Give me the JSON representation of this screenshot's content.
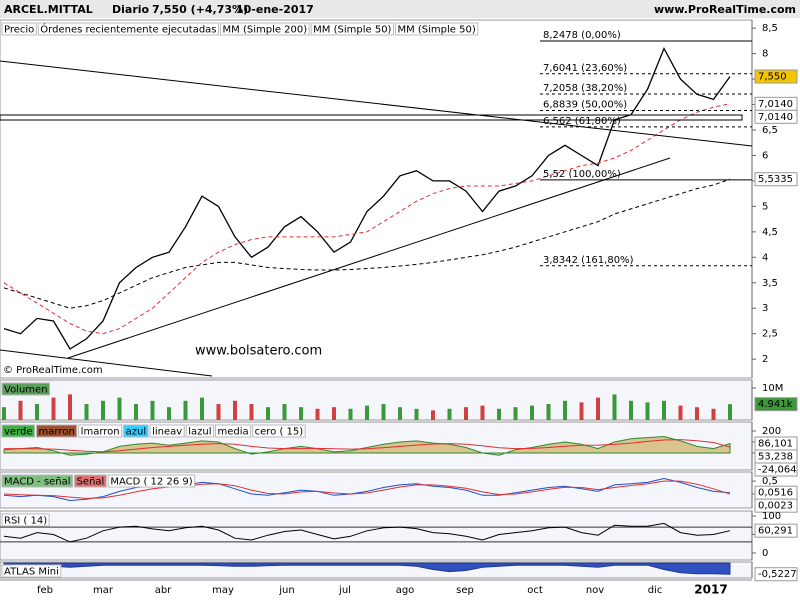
{
  "header": {
    "symbol": "ARCEL.MITTAL",
    "period": "Diario",
    "quote": "7,550 (+4,73%)",
    "date": "10-ene-2017",
    "site": "www.ProRealTime.com"
  },
  "watermark": "www.bolsatero.com",
  "copyright": "© ProRealTime.com",
  "x_axis_labels": [
    "feb",
    "mar",
    "abr",
    "may",
    "jun",
    "jul",
    "ago",
    "sep",
    "oct",
    "nov",
    "dic",
    "2017"
  ],
  "chart_data": [
    {
      "type": "line",
      "legend": [
        {
          "label": "Precio",
          "color": "#000000",
          "bg": "#ffffff"
        },
        {
          "label": "Órdenes recientemente ejecutadas",
          "color": "#e05050",
          "bg": "#ffffff"
        },
        {
          "label": "MM (Simple 200)",
          "color": "#000000",
          "bg": "#ffffff"
        },
        {
          "label": "MM (Simple 50)",
          "color": "#e07070",
          "bg": "#ffffff"
        },
        {
          "label": "MM (Simple 50)",
          "color": "#e07070",
          "bg": "#ffffff"
        }
      ],
      "ylim": [
        1.63,
        8.66
      ],
      "yticks": [
        2,
        {
          "value": 2.5,
          "label": "2,5"
        },
        3,
        {
          "value": 3.5,
          "label": "3,5"
        },
        4,
        {
          "value": 4.5,
          "label": "4,5"
        },
        5,
        {
          "value": 5.5,
          "label": "5,5"
        },
        6,
        {
          "value": 6.5,
          "label": "6,5"
        },
        7,
        {
          "value": 7.5,
          "label": "7,5"
        },
        8,
        {
          "value": 8.5,
          "label": "8,5"
        }
      ],
      "series": [
        {
          "color": "#000000",
          "dash": false,
          "values": [
            2.6,
            2.5,
            2.8,
            2.75,
            2.2,
            2.4,
            2.75,
            3.5,
            3.8,
            4.0,
            4.1,
            4.6,
            5.2,
            5.0,
            4.4,
            4.0,
            4.2,
            4.6,
            4.8,
            4.5,
            4.1,
            4.3,
            4.9,
            5.2,
            5.6,
            5.7,
            5.5,
            5.5,
            5.3,
            4.9,
            5.3,
            5.4,
            5.6,
            6.0,
            6.2,
            6.0,
            5.8,
            6.7,
            6.8,
            7.3,
            8.1,
            7.5,
            7.2,
            7.1,
            7.55
          ]
        },
        {
          "color": "#000000",
          "dash": true,
          "values": [
            3.4,
            3.3,
            3.2,
            3.1,
            3.0,
            3.05,
            3.15,
            3.3,
            3.45,
            3.6,
            3.7,
            3.8,
            3.85,
            3.9,
            3.9,
            3.85,
            3.8,
            3.78,
            3.76,
            3.75,
            3.75,
            3.76,
            3.78,
            3.8,
            3.83,
            3.86,
            3.9,
            3.95,
            4.0,
            4.05,
            4.12,
            4.2,
            4.3,
            4.4,
            4.5,
            4.6,
            4.7,
            4.85,
            4.95,
            5.05,
            5.15,
            5.25,
            5.35,
            5.42,
            5.5335
          ]
        },
        {
          "color": "#e03030",
          "dash": true,
          "values": [
            3.5,
            3.3,
            3.1,
            2.9,
            2.7,
            2.55,
            2.5,
            2.6,
            2.8,
            3.0,
            3.3,
            3.6,
            3.9,
            4.1,
            4.25,
            4.35,
            4.4,
            4.4,
            4.4,
            4.4,
            4.4,
            4.45,
            4.5,
            4.7,
            4.9,
            5.1,
            5.25,
            5.35,
            5.4,
            5.4,
            5.4,
            5.45,
            5.5,
            5.6,
            5.7,
            5.8,
            5.85,
            5.95,
            6.1,
            6.3,
            6.5,
            6.7,
            6.85,
            6.95,
            7.014
          ]
        }
      ],
      "annotations": [
        {
          "value": 8.2478,
          "label": "8,2478 (0,00%)",
          "dash": false
        },
        {
          "value": 7.6041,
          "label": "7,6041 (23,60%)",
          "dash": true
        },
        {
          "value": 7.2058,
          "label": "7,2058 (38,20%)",
          "dash": true
        },
        {
          "value": 6.8839,
          "label": "6,8839 (50,00%)",
          "dash": true
        },
        {
          "value": 6.562,
          "label": "6,562 (61,80%)",
          "dash": true
        },
        {
          "value": 5.52,
          "label": "5,52 (100,00%)",
          "dash": false
        },
        {
          "value": 3.8342,
          "label": "3,8342 (161,80%)",
          "dash": true
        }
      ],
      "last_labels": [
        {
          "value": 7.55,
          "label": "7,550",
          "color": "#000000",
          "bg": "#f5c400"
        },
        {
          "value": 7.014,
          "label": "7,0140",
          "color": "#e03030",
          "bg": "#ffffff"
        },
        {
          "value": 7.014,
          "label": "7,0140",
          "color": "#e03030",
          "bg": "#ffffff"
        },
        {
          "value": 5.5335,
          "label": "5,5335",
          "color": "#000000",
          "bg": "#ffffff"
        }
      ]
    },
    {
      "type": "bar",
      "legend": [
        {
          "label": "Volumen",
          "color": "#ffffff",
          "bg": "#5aa05a"
        }
      ],
      "up_color": "#3a9a3a",
      "down_color": "#d04040",
      "ylim": [
        0,
        12500
      ],
      "yticks": [
        {
          "value": 10000,
          "label": "10M"
        }
      ],
      "values": [
        4000,
        6000,
        5000,
        7000,
        8000,
        5000,
        6000,
        7000,
        5000,
        6000,
        4000,
        6000,
        7000,
        5000,
        6000,
        5000,
        4000,
        5000,
        4000,
        3500,
        4000,
        3500,
        4500,
        5000,
        4000,
        3500,
        3000,
        3500,
        4000,
        4500,
        3500,
        4000,
        4500,
        5000,
        6000,
        5500,
        7000,
        8000,
        6000,
        5500,
        6000,
        4500,
        4000,
        3500,
        4941
      ],
      "last_labels": [
        {
          "value": 4941,
          "label": "4.941k",
          "color": "#ffffff",
          "bg": "#3a9a3a"
        }
      ]
    },
    {
      "type": "area",
      "legend": [
        {
          "label": "verde",
          "color": "#ffffff",
          "bg": "#3cb043"
        },
        {
          "label": "marron",
          "color": "#ffffff",
          "bg": "#a0522d"
        },
        {
          "label": "lmarron",
          "color": "#000000",
          "bg": "#ffffff"
        },
        {
          "label": "azul",
          "color": "#000000",
          "bg": "#33ccff"
        },
        {
          "label": "lineav",
          "color": "#000000",
          "bg": "#ffffff"
        },
        {
          "label": "lazul",
          "color": "#000000",
          "bg": "#ffffff"
        },
        {
          "label": "media",
          "color": "#e03030",
          "bg": "#ffffff"
        },
        {
          "label": "cero ( 15)",
          "color": "#000000",
          "bg": "#ffffff"
        }
      ],
      "ylim": [
        -155,
        282
      ],
      "yticks": [
        200,
        100,
        0
      ],
      "series": [
        {
          "color": "#d9c48e",
          "line": "#2e8b2e",
          "values": [
            30,
            40,
            50,
            20,
            -20,
            -10,
            10,
            60,
            80,
            90,
            70,
            90,
            110,
            100,
            40,
            -10,
            10,
            40,
            60,
            40,
            10,
            20,
            50,
            80,
            100,
            110,
            90,
            80,
            50,
            0,
            -20,
            30,
            50,
            80,
            100,
            80,
            40,
            100,
            130,
            140,
            150,
            110,
            60,
            40,
            86.101
          ]
        },
        {
          "color": "#e03030",
          "values": [
            40,
            40,
            38,
            35,
            25,
            15,
            10,
            20,
            35,
            50,
            60,
            70,
            80,
            85,
            80,
            60,
            45,
            40,
            40,
            42,
            38,
            35,
            38,
            48,
            60,
            72,
            82,
            85,
            80,
            65,
            48,
            40,
            42,
            50,
            62,
            70,
            72,
            78,
            90,
            105,
            118,
            122,
            112,
            95,
            53.238
          ]
        }
      ],
      "last_labels": [
        {
          "value": 86.101,
          "label": "86,101",
          "color": "#000000",
          "bg": "#ffffff"
        },
        {
          "value": 53.238,
          "label": "53,238",
          "color": "#e03030",
          "bg": "#ffffff"
        },
        {
          "value": -24.064,
          "label": "-24,064",
          "color": "#1e50c8",
          "bg": "#ffffff"
        }
      ]
    },
    {
      "type": "line",
      "legend": [
        {
          "label": "MACD - señal",
          "color": "#ffffff",
          "bg": "#7fbf7f"
        },
        {
          "label": "Señal",
          "color": "#ffffff",
          "bg": "#e07070"
        },
        {
          "label": "MACD ( 12 26 9)",
          "color": "#1e50c8",
          "bg": "#ffffff"
        }
      ],
      "ylim": [
        -0.54,
        0.85
      ],
      "yticks": [
        {
          "value": 0.5,
          "label": "0,5"
        },
        0
      ],
      "series": [
        {
          "color": "#1e50c8",
          "dash": false,
          "values": [
            -0.05,
            -0.1,
            -0.05,
            -0.1,
            -0.25,
            -0.2,
            -0.1,
            0.1,
            0.25,
            0.3,
            0.3,
            0.35,
            0.45,
            0.4,
            0.2,
            0.0,
            -0.05,
            0.05,
            0.15,
            0.1,
            -0.05,
            0.0,
            0.1,
            0.25,
            0.35,
            0.4,
            0.3,
            0.25,
            0.15,
            -0.05,
            -0.05,
            0.05,
            0.15,
            0.25,
            0.3,
            0.2,
            0.1,
            0.35,
            0.4,
            0.45,
            0.6,
            0.45,
            0.25,
            0.1,
            0.0516
          ]
        },
        {
          "color": "#e03030",
          "dash": false,
          "values": [
            0,
            -0.03,
            -0.05,
            -0.06,
            -0.12,
            -0.17,
            -0.15,
            -0.05,
            0.08,
            0.2,
            0.27,
            0.3,
            0.38,
            0.4,
            0.32,
            0.15,
            0.02,
            0.0,
            0.08,
            0.1,
            0.04,
            0.0,
            0.04,
            0.15,
            0.27,
            0.35,
            0.35,
            0.3,
            0.22,
            0.08,
            -0.02,
            0.0,
            0.08,
            0.18,
            0.26,
            0.25,
            0.17,
            0.25,
            0.33,
            0.4,
            0.5,
            0.5,
            0.38,
            0.2,
            0.0023
          ]
        }
      ],
      "last_labels": [
        {
          "value": 0.0516,
          "label": "0,0516",
          "color": "#1e50c8",
          "bg": "#ffffff"
        },
        {
          "value": 0.0023,
          "label": "0,0023",
          "color": "#3a9a3a",
          "bg": "#ffffff"
        }
      ]
    },
    {
      "type": "line",
      "legend": [
        {
          "label": "RSI ( 14)",
          "color": "#000000",
          "bg": "#ffffff"
        }
      ],
      "ylim": [
        -19,
        113.5
      ],
      "yticks": [
        100,
        50,
        0
      ],
      "levels": [
        70,
        30
      ],
      "series": [
        {
          "color": "#000000",
          "dash": false,
          "values": [
            45,
            40,
            55,
            50,
            30,
            40,
            60,
            70,
            72,
            65,
            60,
            68,
            72,
            62,
            40,
            35,
            48,
            58,
            62,
            50,
            38,
            45,
            60,
            68,
            70,
            66,
            55,
            52,
            45,
            35,
            50,
            55,
            60,
            68,
            70,
            55,
            48,
            75,
            72,
            72,
            80,
            55,
            48,
            50,
            60.291
          ]
        }
      ],
      "last_labels": [
        {
          "value": 60.291,
          "label": "60,291",
          "color": "#000000",
          "bg": "#ffffff"
        }
      ]
    },
    {
      "type": "area",
      "legend": [
        {
          "label": "ATLAS Mini",
          "color": "#000000",
          "bg": "#ffffff"
        }
      ],
      "ylim": [
        -0.7,
        0.05
      ],
      "yticks": [],
      "series": [
        {
          "color": "#3050c0",
          "line": "#203890",
          "values": [
            -0.1,
            -0.1,
            -0.12,
            -0.15,
            -0.2,
            -0.15,
            -0.1,
            -0.1,
            -0.1,
            -0.1,
            -0.1,
            -0.1,
            -0.1,
            -0.12,
            -0.15,
            -0.15,
            -0.12,
            -0.1,
            -0.1,
            -0.1,
            -0.1,
            -0.1,
            -0.1,
            -0.1,
            -0.1,
            -0.15,
            -0.3,
            -0.4,
            -0.35,
            -0.2,
            -0.15,
            -0.1,
            -0.1,
            -0.1,
            -0.1,
            -0.15,
            -0.2,
            -0.1,
            -0.1,
            -0.1,
            -0.3,
            -0.45,
            -0.5,
            -0.5,
            -0.5227
          ]
        }
      ],
      "last_labels": [
        {
          "value": -0.5227,
          "label": "-0,5227",
          "color": "#000000",
          "bg": "#ffffff"
        }
      ]
    }
  ]
}
